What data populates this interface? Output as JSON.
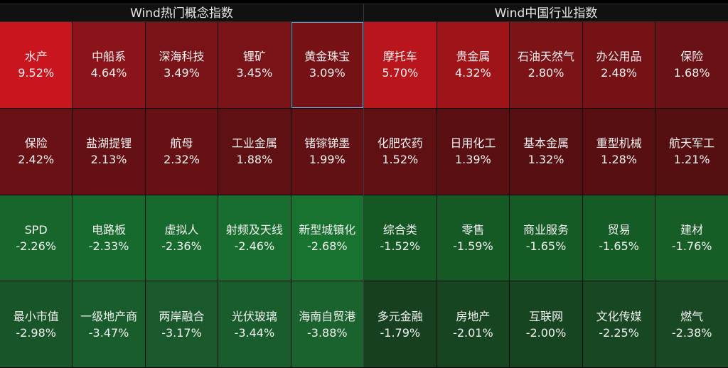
{
  "panels": {
    "left": {
      "title": "Wind热门概念指数",
      "tiles": [
        {
          "name": "水产",
          "pct": "9.52%",
          "color": "#c9161e"
        },
        {
          "name": "中船系",
          "pct": "4.64%",
          "color": "#8a1419"
        },
        {
          "name": "深海科技",
          "pct": "3.49%",
          "color": "#7a1317"
        },
        {
          "name": "锂矿",
          "pct": "3.45%",
          "color": "#7a1317"
        },
        {
          "name": "黄金珠宝",
          "pct": "3.09%",
          "color": "#761216",
          "selected": true
        },
        {
          "name": "保险",
          "pct": "2.42%",
          "color": "#6a1115"
        },
        {
          "name": "盐湖提锂",
          "pct": "2.13%",
          "color": "#651014"
        },
        {
          "name": "航母",
          "pct": "2.32%",
          "color": "#681115"
        },
        {
          "name": "工业金属",
          "pct": "1.88%",
          "color": "#5e1013"
        },
        {
          "name": "锗镓锑墨",
          "pct": "1.99%",
          "color": "#611014"
        },
        {
          "name": "SPD",
          "pct": "-2.26%",
          "color": "#17662c"
        },
        {
          "name": "电路板",
          "pct": "-2.33%",
          "color": "#176a2d"
        },
        {
          "name": "虚拟人",
          "pct": "-2.36%",
          "color": "#176a2d"
        },
        {
          "name": "射频及天线",
          "pct": "-2.46%",
          "color": "#186e2e"
        },
        {
          "name": "新型城镇化",
          "pct": "-2.68%",
          "color": "#187330"
        },
        {
          "name": "最小市值",
          "pct": "-2.98%",
          "color": "#18562a"
        },
        {
          "name": "一级地产商",
          "pct": "-3.47%",
          "color": "#195d2c"
        },
        {
          "name": "两岸融合",
          "pct": "-3.17%",
          "color": "#19592b"
        },
        {
          "name": "光伏玻璃",
          "pct": "-3.44%",
          "color": "#195d2c"
        },
        {
          "name": "海南自贸港",
          "pct": "-3.88%",
          "color": "#1a622e"
        }
      ]
    },
    "right": {
      "title": "Wind中国行业指数",
      "tiles": [
        {
          "name": "摩托车",
          "pct": "5.70%",
          "color": "#b8151c"
        },
        {
          "name": "贵金属",
          "pct": "4.32%",
          "color": "#9e1419"
        },
        {
          "name": "石油天然气",
          "pct": "2.80%",
          "color": "#7b1317"
        },
        {
          "name": "办公用品",
          "pct": "2.48%",
          "color": "#741216"
        },
        {
          "name": "保险",
          "pct": "1.68%",
          "color": "#6a1115"
        },
        {
          "name": "化肥农药",
          "pct": "1.52%",
          "color": "#5e1013"
        },
        {
          "name": "日用化工",
          "pct": "1.39%",
          "color": "#5a0f12"
        },
        {
          "name": "基本金属",
          "pct": "1.32%",
          "color": "#580f12"
        },
        {
          "name": "重型机械",
          "pct": "1.28%",
          "color": "#570f12"
        },
        {
          "name": "航天军工",
          "pct": "1.21%",
          "color": "#550f11"
        },
        {
          "name": "综合类",
          "pct": "-1.52%",
          "color": "#145824"
        },
        {
          "name": "零售",
          "pct": "-1.59%",
          "color": "#155a25"
        },
        {
          "name": "商业服务",
          "pct": "-1.65%",
          "color": "#155b25"
        },
        {
          "name": "贸易",
          "pct": "-1.65%",
          "color": "#155b25"
        },
        {
          "name": "建材",
          "pct": "-1.76%",
          "color": "#165e26"
        },
        {
          "name": "多元金融",
          "pct": "-1.79%",
          "color": "#16401f"
        },
        {
          "name": "房地产",
          "pct": "-2.01%",
          "color": "#174421"
        },
        {
          "name": "互联网",
          "pct": "-2.00%",
          "color": "#174421"
        },
        {
          "name": "文化传媒",
          "pct": "-2.25%",
          "color": "#184723"
        },
        {
          "name": "燃气",
          "pct": "-2.38%",
          "color": "#184924"
        }
      ]
    }
  }
}
